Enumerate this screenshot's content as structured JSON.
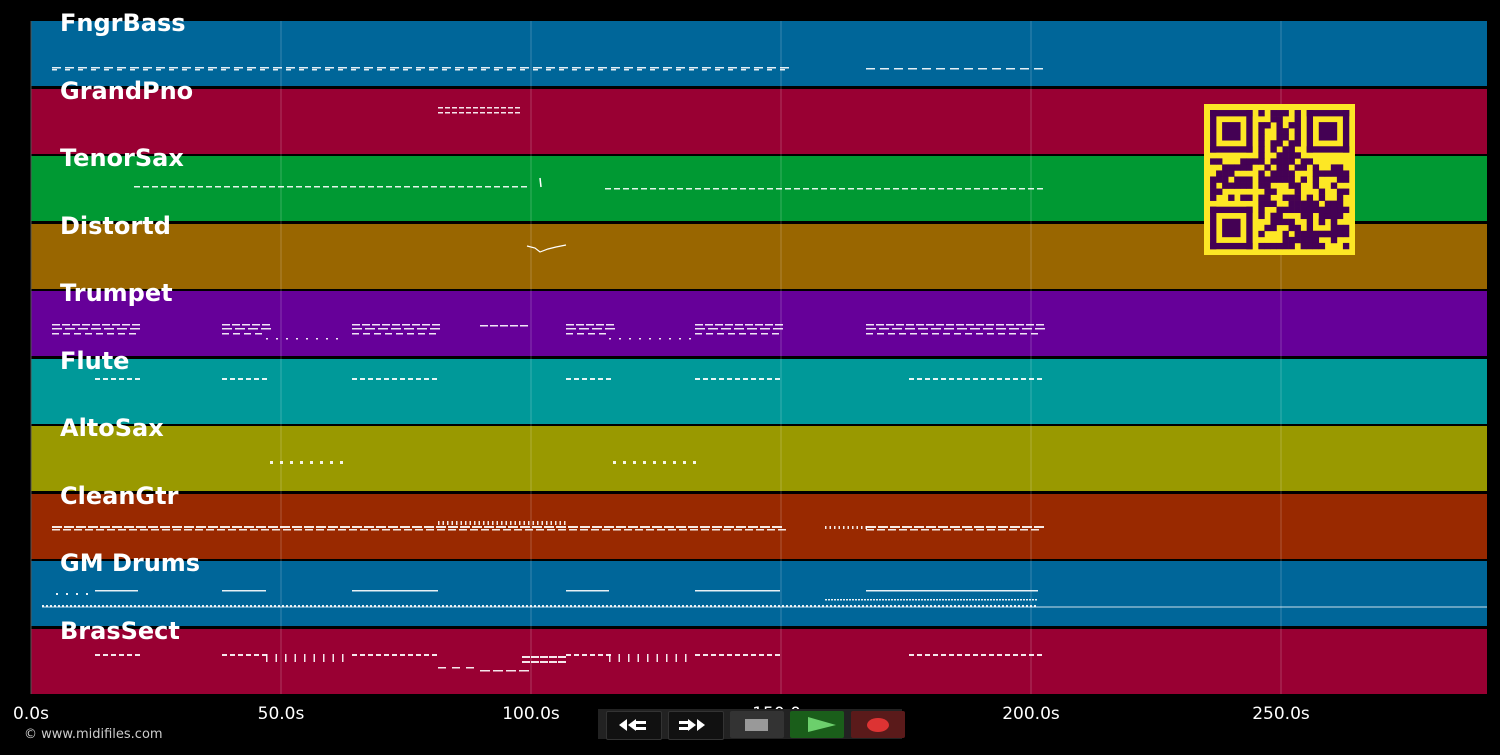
{
  "tracks": [
    {
      "name": "FngrBass",
      "color": "#006699"
    },
    {
      "name": "GrandPno",
      "color": "#990033"
    },
    {
      "name": "TenorSax",
      "color": "#009933"
    },
    {
      "name": "Distortd",
      "color": "#996600"
    },
    {
      "name": "Trumpet",
      "color": "#660099"
    },
    {
      "name": "Flute",
      "color": "#009999"
    },
    {
      "name": "AltoSax",
      "color": "#999900"
    },
    {
      "name": "CleanGtr",
      "color": "#992900"
    },
    {
      "name": "GM Drums",
      "color": "#006699"
    },
    {
      "name": "BrasSect",
      "color": "#990033"
    }
  ],
  "timeline": {
    "ticks": [
      "0.0s",
      "50.0s",
      "100.0s",
      "150.0s",
      "200.0s",
      "250.0s"
    ],
    "tick_seconds": [
      0,
      50,
      100,
      150,
      200,
      250
    ],
    "duration_seconds": 291
  },
  "copyright": "© www.midifiles.com",
  "transport": {
    "buttons": [
      {
        "name": "rewind-button",
        "icon": "rewind-icon"
      },
      {
        "name": "fast-forward-button",
        "icon": "fast-forward-icon"
      },
      {
        "name": "stop-button",
        "icon": "stop-icon"
      },
      {
        "name": "play-button",
        "icon": "play-icon"
      },
      {
        "name": "record-button",
        "icon": "record-icon"
      }
    ]
  },
  "qr_code": {
    "icon": "qr-code-icon",
    "colors": {
      "fg": "#440154",
      "bg": "#fde725"
    }
  }
}
